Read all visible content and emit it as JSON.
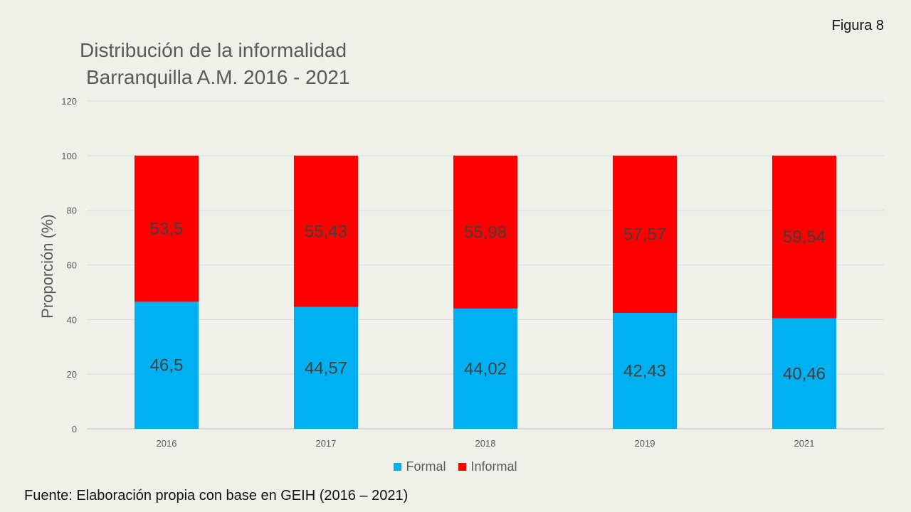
{
  "figure_label": "Figura 8",
  "source_note": "Fuente: Elaboración propia con base en GEIH (2016 – 2021)",
  "chart_data": {
    "type": "bar",
    "stacked": true,
    "title_line1": "Distribución de  la informalidad",
    "title_line2": "Barranquilla A.M. 2016 - 2021",
    "ylabel": "Proporción (%)",
    "xlabel": "",
    "ylim": [
      0,
      120
    ],
    "yticks": [
      0,
      20,
      40,
      60,
      80,
      100,
      120
    ],
    "grid": true,
    "legend_position": "bottom",
    "categories": [
      "2016",
      "2017",
      "2018",
      "2019",
      "2021"
    ],
    "series": [
      {
        "name": "Formal",
        "color": "#00b0f0",
        "values": [
          46.5,
          44.57,
          44.02,
          42.43,
          40.46
        ],
        "labels": [
          "46,5",
          "44,57",
          "44,02",
          "42,43",
          "40,46"
        ]
      },
      {
        "name": "Informal",
        "color": "#ff0000",
        "values": [
          53.5,
          55.43,
          55.98,
          57.57,
          59.54
        ],
        "labels": [
          "53,5",
          "55,43",
          "55,98",
          "57,57",
          "59,54"
        ]
      }
    ]
  }
}
